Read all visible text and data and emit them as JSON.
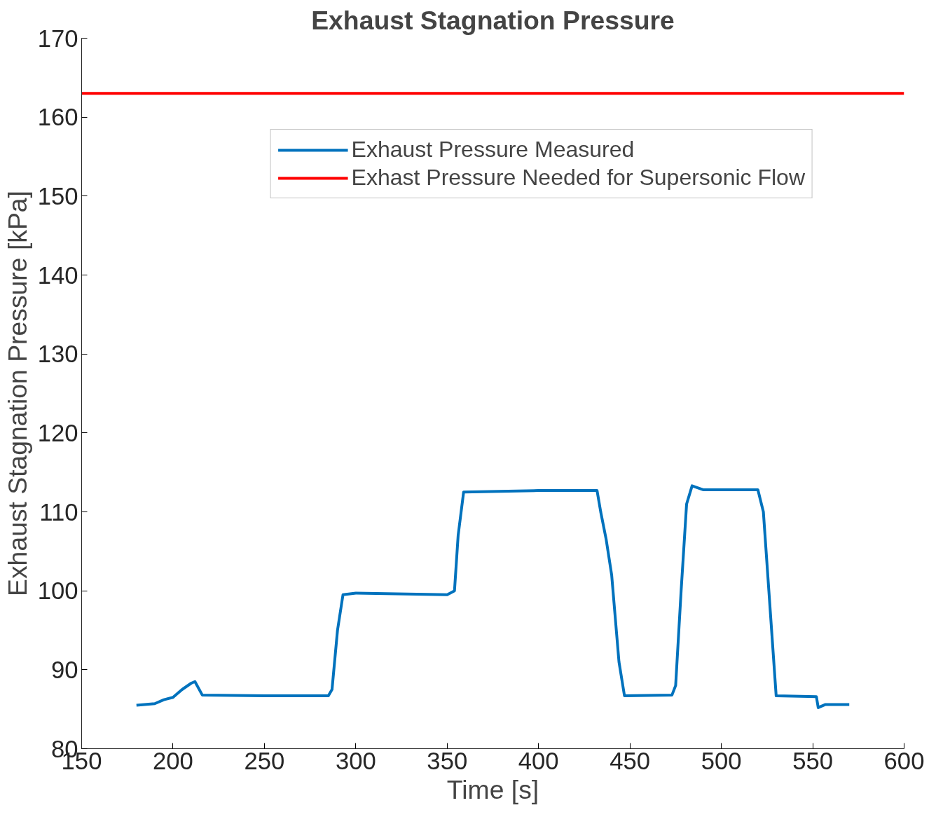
{
  "chart_data": {
    "type": "line",
    "title": "Exhaust Stagnation Pressure",
    "xlabel": "Time [s]",
    "ylabel": "Exhaust Stagnation Pressure [kPa]",
    "xlim": [
      150,
      600
    ],
    "ylim": [
      80,
      170
    ],
    "xticks": [
      150,
      200,
      250,
      300,
      350,
      400,
      450,
      500,
      550,
      600
    ],
    "yticks": [
      80,
      90,
      100,
      110,
      120,
      130,
      140,
      150,
      160,
      170
    ],
    "grid": false,
    "legend": "top right",
    "series": [
      {
        "name": "Exhaust Pressure Measured",
        "color": "#0072bd",
        "x": [
          180,
          190,
          195,
          200,
          205,
          210,
          212,
          216,
          250,
          285,
          287,
          290,
          293,
          300,
          350,
          354,
          356,
          359,
          400,
          432,
          434,
          437,
          440,
          444,
          447,
          473,
          475,
          478,
          481,
          484,
          490,
          520,
          523,
          526,
          530,
          552,
          553,
          557,
          570
        ],
        "values": [
          85.5,
          85.7,
          86.2,
          86.5,
          87.5,
          88.3,
          88.5,
          86.8,
          86.7,
          86.7,
          87.5,
          95,
          99.5,
          99.7,
          99.5,
          100,
          107,
          112.5,
          112.7,
          112.7,
          110,
          106.5,
          102,
          91,
          86.7,
          86.8,
          88,
          100,
          111,
          113.3,
          112.8,
          112.8,
          110,
          100,
          86.7,
          86.6,
          85.2,
          85.6,
          85.6
        ]
      },
      {
        "name": "Exhast Pressure Needed for Supersonic Flow",
        "color": "#ff0000",
        "x": [
          150,
          600
        ],
        "values": [
          163,
          163
        ]
      }
    ]
  }
}
